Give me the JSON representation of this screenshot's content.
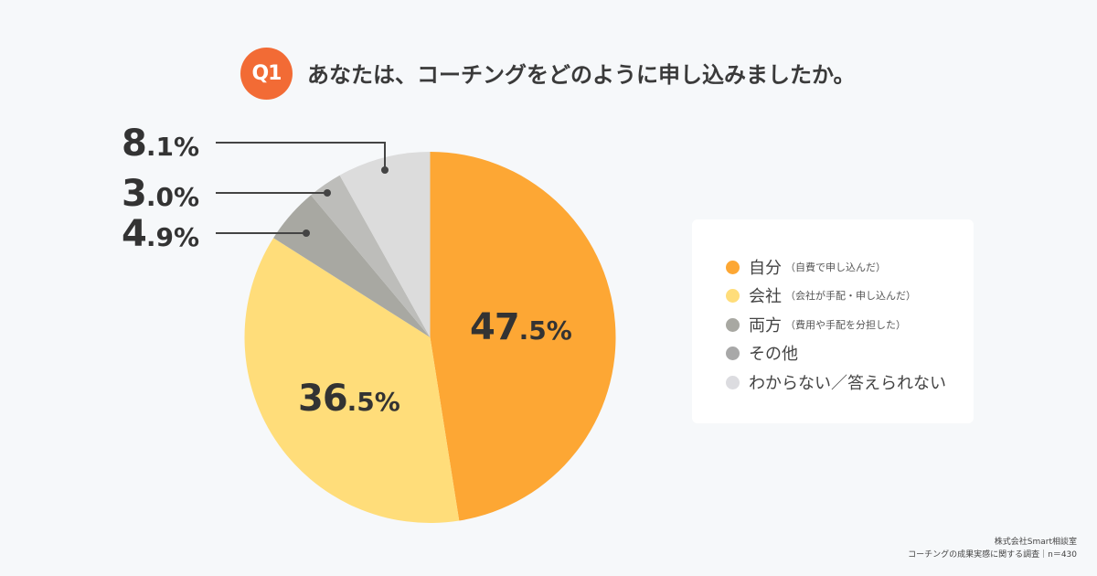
{
  "header": {
    "badge": "Q1",
    "title": "あなたは、コーチングをどのように申し込みましたか。"
  },
  "chart_data": {
    "type": "pie",
    "title": "あなたは、コーチングをどのように申し込みましたか。",
    "categories": [
      "自分（自費で申し込んだ）",
      "会社（会社が手配・申し込んだ）",
      "両方（費用や手配を分担した）",
      "その他",
      "わからない／答えられない"
    ],
    "values": [
      47.5,
      36.5,
      4.9,
      3.0,
      8.1
    ],
    "colors": [
      "#FDA734",
      "#FFDD7A",
      "#A8A8A2",
      "#BDBDBA",
      "#DCDCDC"
    ],
    "labels": [
      {
        "int": "47",
        "dec": ".5%"
      },
      {
        "int": "36",
        "dec": ".5%"
      },
      {
        "int": "4",
        "dec": ".9%"
      },
      {
        "int": "3",
        "dec": ".0%"
      },
      {
        "int": "8",
        "dec": ".1%"
      }
    ],
    "legend_position": "right",
    "start_angle": "top",
    "direction": "clockwise"
  },
  "legend": {
    "items": [
      {
        "main": "自分",
        "sub": "（自費で申し込んだ）",
        "color": "#FDA734"
      },
      {
        "main": "会社",
        "sub": "（会社が手配・申し込んだ）",
        "color": "#FFDD7A"
      },
      {
        "main": "両方",
        "sub": "（費用や手配を分担した）",
        "color": "#A8A8A2"
      },
      {
        "main": "その他",
        "sub": "",
        "color": "#A8A8A8"
      },
      {
        "main": "わからない／答えられない",
        "sub": "",
        "color": "#DCDCE0"
      }
    ]
  },
  "footer": {
    "line1": "株式会社Smart相談室",
    "line2": "コーチングの成果実感に関する調査｜n＝430"
  }
}
